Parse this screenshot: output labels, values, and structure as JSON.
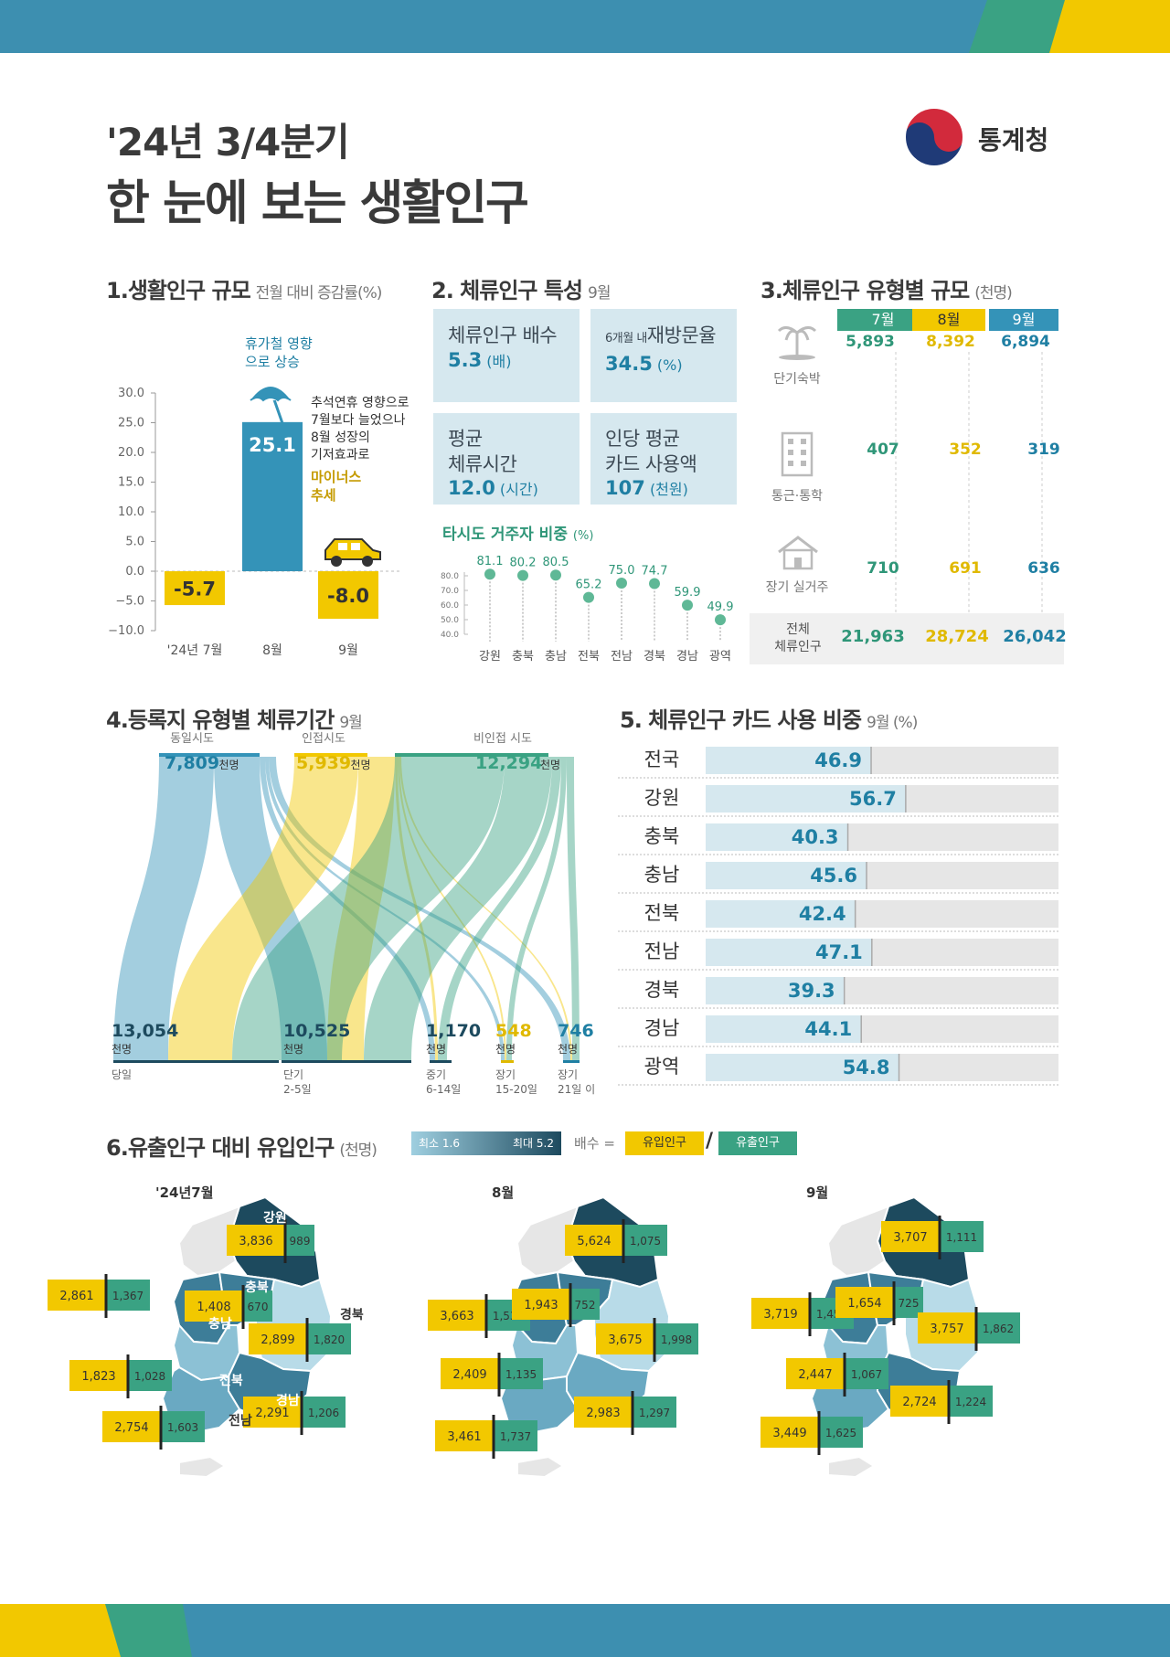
{
  "header": {
    "line1": "'24년 3/4분기",
    "line2": "한 눈에 보는 생활인구",
    "logo_text": "통계청"
  },
  "colors": {
    "teal": "#3493b8",
    "green": "#3aa283",
    "yellow": "#f2c800",
    "navy": "#1d4a5e",
    "light": "#d6e8ef",
    "grey": "#e6e6e6"
  },
  "sec1": {
    "title": "1.생활인구 규모",
    "sub": "전월 대비 증감률(%)",
    "note_aug": "휴가철 영향\n으로 상승",
    "note_sep": "추석연휴 영향으로\n7월보다 늘었으나\n8월 성장의\n기저효과로",
    "note_sep_hl": "마이너스\n추세"
  },
  "sec2": {
    "title": "2. 체류인구 특성",
    "sub": "9월",
    "boxes": [
      {
        "label": "체류인구 배수",
        "value": "5.3",
        "unit": "(배)"
      },
      {
        "label_small": "6개월 내",
        "label": "재방문율",
        "value": "34.5",
        "unit": "(%)"
      },
      {
        "label": "평균\n체류시간",
        "value": "12.0",
        "unit": "(시간)"
      },
      {
        "label": "인당 평균\n카드 사용액",
        "value": "107",
        "unit": "(천원)"
      }
    ],
    "chart_title": "타시도 거주자 비중",
    "chart_unit": "(%)"
  },
  "sec3": {
    "title": "3.체류인구 유형별 규모",
    "sub": "(천명)",
    "months": [
      "7월",
      "8월",
      "9월"
    ],
    "rows": [
      {
        "label": "단기숙박",
        "values": [
          "5,893",
          "8,392",
          "6,894"
        ]
      },
      {
        "label": "통근·통학",
        "values": [
          "407",
          "352",
          "319"
        ]
      },
      {
        "label": "장기 실거주",
        "values": [
          "710",
          "691",
          "636"
        ]
      }
    ],
    "total": {
      "label": "전체\n체류인구",
      "values": [
        "21,963",
        "28,724",
        "26,042"
      ]
    }
  },
  "sec4": {
    "title": "4.등록지 유형별 체류기간",
    "sub": "9월",
    "sources": [
      {
        "label": "동일시도",
        "value": "7,809",
        "unit": "천명"
      },
      {
        "label": "인접시도",
        "value": "5,939",
        "unit": "천명"
      },
      {
        "label": "비인접 시도",
        "value": "12,294",
        "unit": "천명"
      }
    ],
    "targets": [
      {
        "value": "13,054",
        "unit": "천명",
        "label": "당일",
        "sub": ""
      },
      {
        "value": "10,525",
        "unit": "천명",
        "label": "단기",
        "sub": "2-5일"
      },
      {
        "value": "1,170",
        "unit": "천명",
        "label": "중기",
        "sub": "6-14일"
      },
      {
        "value": "548",
        "unit": "천명",
        "label": "장기",
        "sub": "15-20일"
      },
      {
        "value": "746",
        "unit": "천명",
        "label": "장기",
        "sub": "21일 이상"
      }
    ]
  },
  "sec5": {
    "title": "5. 체류인구 카드 사용 비중",
    "sub": "9월 (%)"
  },
  "sec6": {
    "title": "6.유출인구 대비 유입인구",
    "sub": "(천명)",
    "legend_min": "최소 1.6",
    "legend_max": "최대 5.2",
    "ratio_label": "배수 =",
    "inflow": "유입인구",
    "outflow": "유출인구",
    "maps": [
      {
        "month": "'24년7월",
        "regions": [
          "강원",
          "충북",
          "충남",
          "경북",
          "전북",
          "경남",
          "전남"
        ],
        "pairs": [
          [
            "3,836",
            "989"
          ],
          [
            "2,861",
            "1,367"
          ],
          [
            "1,408",
            "670"
          ],
          [
            "2,899",
            "1,820"
          ],
          [
            "1,823",
            "1,028"
          ],
          [
            "2,291",
            "1,206"
          ],
          [
            "2,754",
            "1,603"
          ]
        ]
      },
      {
        "month": "8월",
        "pairs": [
          [
            "5,624",
            "1,075"
          ],
          [
            "3,663",
            "1,530"
          ],
          [
            "1,943",
            "752"
          ],
          [
            "3,675",
            "1,998"
          ],
          [
            "2,409",
            "1,135"
          ],
          [
            "2,983",
            "1,297"
          ],
          [
            "3,461",
            "1,737"
          ]
        ]
      },
      {
        "month": "9월",
        "pairs": [
          [
            "3,707",
            "1,111"
          ],
          [
            "3,719",
            "1,457"
          ],
          [
            "1,654",
            "725"
          ],
          [
            "3,757",
            "1,862"
          ],
          [
            "2,447",
            "1,067"
          ],
          [
            "2,724",
            "1,224"
          ],
          [
            "3,449",
            "1,625"
          ]
        ]
      }
    ]
  },
  "chart_data": [
    {
      "type": "bar",
      "title": "1.생활인구 규모",
      "ylabel": "전월 대비 증감률(%)",
      "categories": [
        "'24년 7월",
        "8월",
        "9월"
      ],
      "values": [
        -5.7,
        25.1,
        -8.0
      ],
      "ylim": [
        -10,
        30
      ],
      "yticks": [
        "30.0",
        "25.0",
        "20.0",
        "15.0",
        "10.0",
        "5.0",
        "0.0",
        "−5.0",
        "−10.0"
      ]
    },
    {
      "type": "scatter",
      "title": "타시도 거주자 비중 (%)",
      "categories": [
        "강원",
        "충북",
        "충남",
        "전북",
        "전남",
        "경북",
        "경남",
        "광역"
      ],
      "values": [
        81.1,
        80.2,
        80.5,
        65.2,
        75.0,
        74.7,
        59.9,
        49.9
      ],
      "ylim": [
        40,
        80
      ],
      "yticks": [
        "80.0",
        "70.0",
        "60.0",
        "50.0",
        "40.0"
      ]
    },
    {
      "type": "bar",
      "title": "5. 체류인구 카드 사용 비중",
      "orientation": "horizontal",
      "categories": [
        "전국",
        "강원",
        "충북",
        "충남",
        "전북",
        "전남",
        "경북",
        "경남",
        "광역"
      ],
      "values": [
        46.9,
        56.7,
        40.3,
        45.6,
        42.4,
        47.1,
        39.3,
        44.1,
        54.8
      ],
      "xlim": [
        0,
        100
      ]
    }
  ]
}
